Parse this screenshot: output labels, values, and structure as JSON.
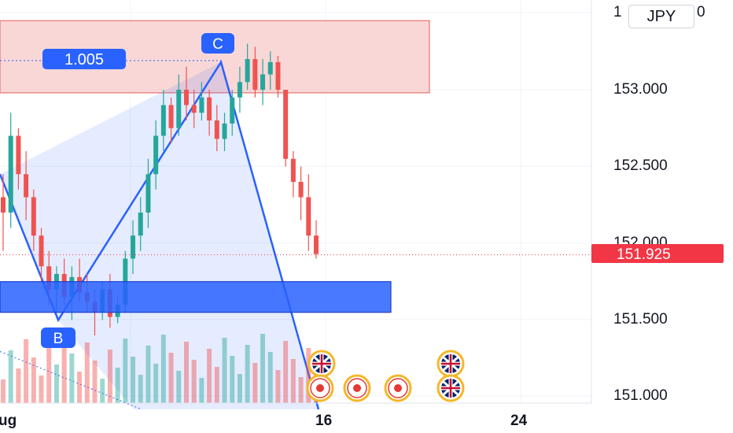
{
  "currency_label": "JPY",
  "price_axis": {
    "ticks": [
      "153.000",
      "152.500",
      "152.000",
      "151.500",
      "151.000"
    ],
    "top_partial": "1",
    "top_partial_suffix": "0",
    "current_price": "151.925"
  },
  "time_axis": {
    "ticks": [
      "16",
      "24"
    ],
    "left_partial": "ug"
  },
  "pattern": {
    "ratio_label": "1.005",
    "points": [
      "B",
      "C"
    ]
  },
  "colors": {
    "up": "#26a69a",
    "down": "#ef5350",
    "pattern_line": "#2962ff",
    "pattern_fill": "#2962ff",
    "zone_top": "#f7c9c9",
    "zone_bottom": "#2962ff",
    "price_tag": "#f23645"
  },
  "events": [
    {
      "icon": "uk-flag-icon"
    },
    {
      "icon": "uk-flag-icon"
    },
    {
      "icon": "japan-flag-icon"
    },
    {
      "icon": "japan-flag-icon"
    },
    {
      "icon": "uk-flag-icon"
    },
    {
      "icon": "japan-flag-icon"
    }
  ],
  "chart_data": {
    "type": "candlestick",
    "ylim": [
      150.95,
      154.0
    ],
    "zones": [
      {
        "kind": "resistance",
        "low": 152.98,
        "high": 153.45
      },
      {
        "kind": "support",
        "low": 151.55,
        "high": 151.75
      }
    ],
    "series_ohlc": [
      [
        152.3,
        152.45,
        151.95,
        152.2
      ],
      [
        152.2,
        152.85,
        152.1,
        152.7
      ],
      [
        152.7,
        152.75,
        152.35,
        152.45
      ],
      [
        152.45,
        152.6,
        152.15,
        152.3
      ],
      [
        152.3,
        152.35,
        151.95,
        152.05
      ],
      [
        152.05,
        152.1,
        151.75,
        151.85
      ],
      [
        151.85,
        151.95,
        151.6,
        151.7
      ],
      [
        151.7,
        151.85,
        151.55,
        151.8
      ],
      [
        151.8,
        151.9,
        151.6,
        151.65
      ],
      [
        151.65,
        151.85,
        151.5,
        151.78
      ],
      [
        151.78,
        151.9,
        151.62,
        151.68
      ],
      [
        151.68,
        151.8,
        151.55,
        151.62
      ],
      [
        151.62,
        151.7,
        151.4,
        151.55
      ],
      [
        151.55,
        151.75,
        151.5,
        151.7
      ],
      [
        151.7,
        151.8,
        151.45,
        151.52
      ],
      [
        151.52,
        151.65,
        151.48,
        151.6
      ],
      [
        151.6,
        151.95,
        151.55,
        151.9
      ],
      [
        151.9,
        152.15,
        151.8,
        152.05
      ],
      [
        152.05,
        152.3,
        151.95,
        152.2
      ],
      [
        152.2,
        152.55,
        152.1,
        152.45
      ],
      [
        152.45,
        152.8,
        152.35,
        152.7
      ],
      [
        152.7,
        153.0,
        152.6,
        152.9
      ],
      [
        152.9,
        152.95,
        152.65,
        152.75
      ],
      [
        152.75,
        153.1,
        152.7,
        153.0
      ],
      [
        153.0,
        153.15,
        152.8,
        152.9
      ],
      [
        152.9,
        153.0,
        152.75,
        152.85
      ],
      [
        152.85,
        153.05,
        152.8,
        152.95
      ],
      [
        152.95,
        153.0,
        152.7,
        152.8
      ],
      [
        152.8,
        152.9,
        152.6,
        152.68
      ],
      [
        152.68,
        152.85,
        152.6,
        152.78
      ],
      [
        152.78,
        153.0,
        152.7,
        152.95
      ],
      [
        152.95,
        153.15,
        152.85,
        153.05
      ],
      [
        153.05,
        153.3,
        153.0,
        153.2
      ],
      [
        153.2,
        153.28,
        152.95,
        153.0
      ],
      [
        153.0,
        153.2,
        152.9,
        153.1
      ],
      [
        153.1,
        153.25,
        153.0,
        153.18
      ],
      [
        153.18,
        153.22,
        152.95,
        153.0
      ],
      [
        153.0,
        152.98,
        152.5,
        152.55
      ],
      [
        152.55,
        152.6,
        152.3,
        152.4
      ],
      [
        152.4,
        152.5,
        152.15,
        152.3
      ],
      [
        152.3,
        152.45,
        151.95,
        152.05
      ],
      [
        152.05,
        152.15,
        151.9,
        151.93
      ]
    ],
    "pattern_points": [
      {
        "label": "B",
        "price": 151.5
      },
      {
        "label": "C",
        "price": 153.18
      }
    ]
  }
}
